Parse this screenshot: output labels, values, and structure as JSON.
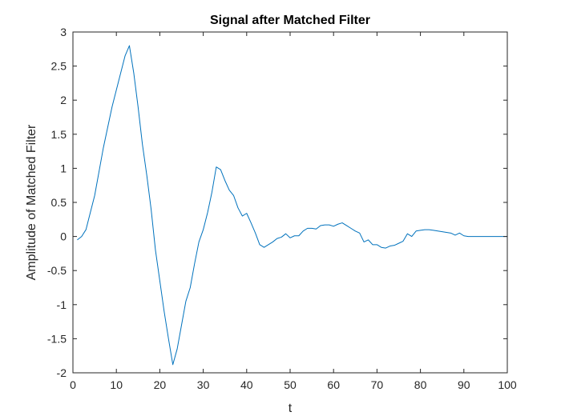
{
  "chart_data": {
    "type": "line",
    "title": "Signal after Matched Filter",
    "xlabel": "t",
    "ylabel": "Amplitude of Matched Filter",
    "xlim": [
      0,
      100
    ],
    "ylim": [
      -2,
      3
    ],
    "xticks": [
      0,
      10,
      20,
      30,
      40,
      50,
      60,
      70,
      80,
      90,
      100
    ],
    "yticks": [
      -2,
      -1.5,
      -1,
      -0.5,
      0,
      0.5,
      1,
      1.5,
      2,
      2.5,
      3
    ],
    "grid": false,
    "box": true,
    "series": [
      {
        "color": "#0072BD",
        "x": [
          1,
          2,
          3,
          4,
          5,
          6,
          7,
          8,
          9,
          10,
          11,
          12,
          13,
          14,
          15,
          16,
          17,
          18,
          19,
          20,
          21,
          22,
          23,
          24,
          25,
          26,
          27,
          28,
          29,
          30,
          31,
          32,
          33,
          34,
          35,
          36,
          37,
          38,
          39,
          40,
          41,
          42,
          43,
          44,
          45,
          46,
          47,
          48,
          49,
          50,
          51,
          52,
          53,
          54,
          55,
          56,
          57,
          58,
          59,
          60,
          61,
          62,
          63,
          64,
          65,
          66,
          67,
          68,
          69,
          70,
          71,
          72,
          73,
          74,
          75,
          76,
          77,
          78,
          79,
          80,
          81,
          82,
          83,
          84,
          85,
          86,
          87,
          88,
          89,
          90,
          91,
          92,
          93,
          94,
          95,
          96,
          97,
          98,
          99,
          100
        ],
        "y": [
          -0.05,
          0.0,
          0.1,
          0.35,
          0.6,
          0.95,
          1.3,
          1.6,
          1.9,
          2.15,
          2.4,
          2.65,
          2.8,
          2.4,
          1.9,
          1.35,
          0.9,
          0.4,
          -0.2,
          -0.65,
          -1.1,
          -1.5,
          -1.88,
          -1.65,
          -1.3,
          -0.95,
          -0.75,
          -0.4,
          -0.08,
          0.1,
          0.35,
          0.65,
          1.02,
          0.98,
          0.82,
          0.68,
          0.6,
          0.42,
          0.3,
          0.34,
          0.2,
          0.05,
          -0.12,
          -0.16,
          -0.12,
          -0.08,
          -0.03,
          -0.01,
          0.04,
          -0.02,
          0.01,
          0.01,
          0.08,
          0.12,
          0.12,
          0.11,
          0.16,
          0.17,
          0.17,
          0.15,
          0.18,
          0.2,
          0.16,
          0.12,
          0.08,
          0.05,
          -0.08,
          -0.05,
          -0.12,
          -0.12,
          -0.16,
          -0.17,
          -0.14,
          -0.13,
          -0.1,
          -0.07,
          0.04,
          0.0,
          0.08,
          0.09,
          0.1,
          0.1,
          0.09,
          0.08,
          0.07,
          0.06,
          0.05,
          0.02,
          0.05,
          0.01,
          0.0,
          0.0,
          0.0,
          0.0,
          0.0,
          0.0,
          0.0,
          0.0,
          0.0,
          0.0
        ]
      }
    ]
  }
}
